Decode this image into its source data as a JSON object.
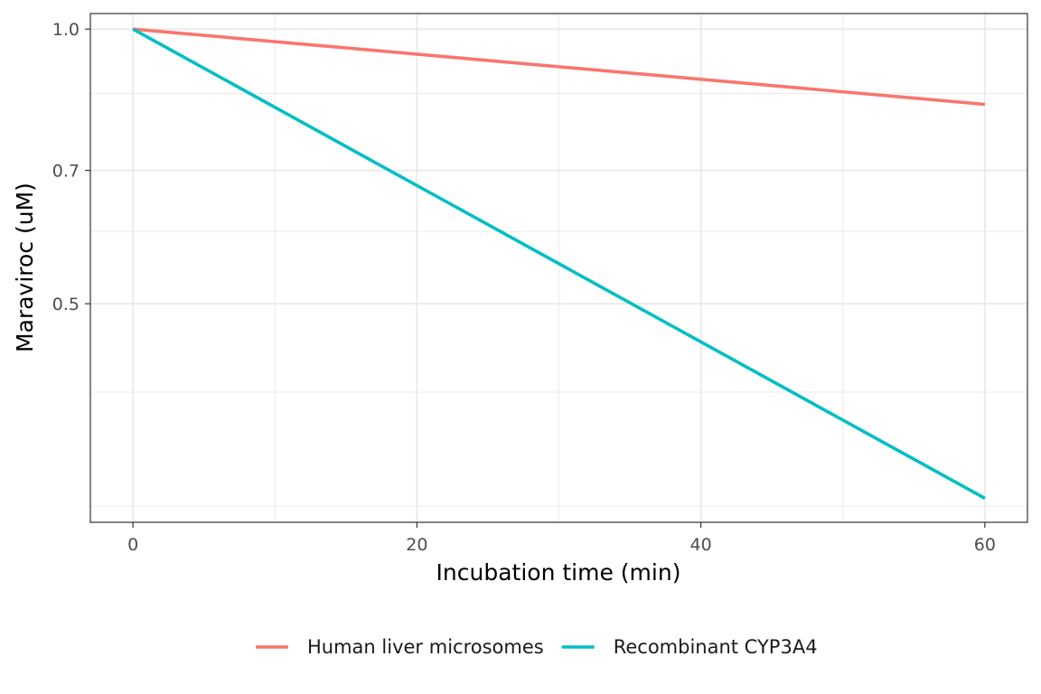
{
  "chart_data": {
    "type": "line",
    "xlabel": "Incubation time (min)",
    "ylabel": "Maraviroc (uM)",
    "x_ticks": [
      0,
      20,
      40,
      60
    ],
    "x_tick_labels": [
      "0",
      "20",
      "40",
      "60"
    ],
    "x_minor_ticks": [
      10,
      30,
      50
    ],
    "xlim": [
      -3,
      63
    ],
    "y_scale": "log",
    "y_ticks": [
      0.5,
      0.7,
      1.0
    ],
    "y_tick_labels": [
      "0.5",
      "0.7",
      "1.0"
    ],
    "y_minor_ticks": [
      0.3,
      0.4,
      0.6,
      0.85
    ],
    "ylim": [
      0.288,
      1.04
    ],
    "grid": true,
    "legend_position": "bottom",
    "series": [
      {
        "name": "Human liver microsomes",
        "color": "#F8766D",
        "x": [
          0,
          60
        ],
        "y": [
          1.0,
          0.827
        ]
      },
      {
        "name": "Recombinant CYP3A4",
        "color": "#00BFC4",
        "x": [
          0,
          60
        ],
        "y": [
          1.0,
          0.306
        ]
      }
    ]
  }
}
